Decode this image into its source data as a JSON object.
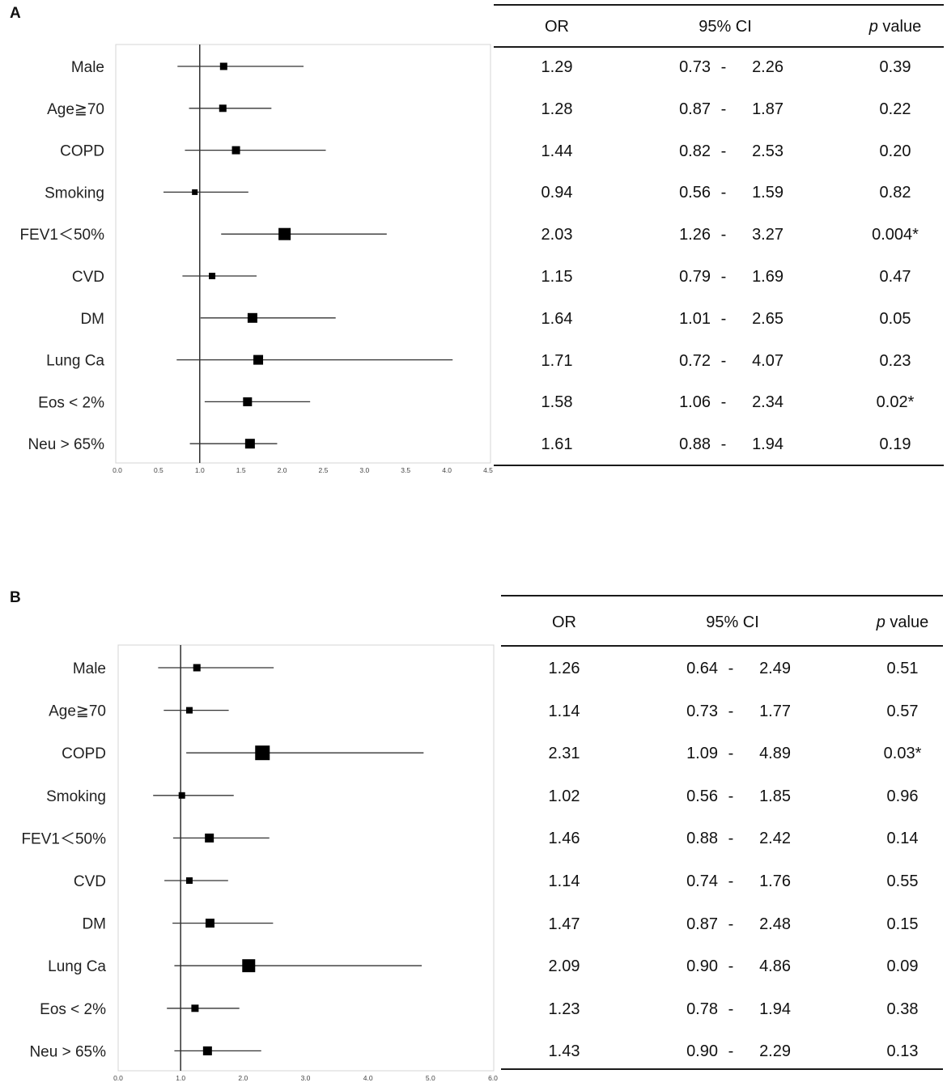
{
  "table_headers": {
    "or": "OR",
    "ci": "95% CI",
    "p_italic": "p",
    "p_rest": "value"
  },
  "chart_data": [
    {
      "type": "forest",
      "panel_label": "A",
      "xlim": [
        0,
        4.5
      ],
      "xticks": [
        "0.0",
        "0.5",
        "1.0",
        "1.5",
        "2.0",
        "2.5",
        "3.0",
        "3.5",
        "4.0",
        "4.5"
      ],
      "reference_line": 1.0,
      "rows": [
        {
          "label": "Male",
          "or": "1.29",
          "lo": "0.73",
          "hi": "2.26",
          "p": "0.39",
          "marker": 9
        },
        {
          "label": "Age≧70",
          "or": "1.28",
          "lo": "0.87",
          "hi": "1.87",
          "p": "0.22",
          "marker": 9
        },
        {
          "label": "COPD",
          "or": "1.44",
          "lo": "0.82",
          "hi": "2.53",
          "p": "0.20",
          "marker": 10
        },
        {
          "label": "Smoking",
          "or": "0.94",
          "lo": "0.56",
          "hi": "1.59",
          "p": "0.82",
          "marker": 7
        },
        {
          "label": "FEV1＜50%",
          "or": "2.03",
          "lo": "1.26",
          "hi": "3.27",
          "p": "0.004*",
          "marker": 15
        },
        {
          "label": "CVD",
          "or": "1.15",
          "lo": "0.79",
          "hi": "1.69",
          "p": "0.47",
          "marker": 8
        },
        {
          "label": "DM",
          "or": "1.64",
          "lo": "1.01",
          "hi": "2.65",
          "p": "0.05",
          "marker": 12
        },
        {
          "label": "Lung Ca",
          "or": "1.71",
          "lo": "0.72",
          "hi": "4.07",
          "p": "0.23",
          "marker": 12
        },
        {
          "label": "Eos < 2%",
          "or": "1.58",
          "lo": "1.06",
          "hi": "2.34",
          "p": "0.02*",
          "marker": 11
        },
        {
          "label": "Neu > 65%",
          "or": "1.61",
          "lo": "0.88",
          "hi": "1.94",
          "p": "0.19",
          "marker": 12
        }
      ]
    },
    {
      "type": "forest",
      "panel_label": "B",
      "xlim": [
        0,
        6
      ],
      "xticks": [
        "0.0",
        "1.0",
        "2.0",
        "3.0",
        "4.0",
        "5.0",
        "6.0"
      ],
      "reference_line": 1.0,
      "rows": [
        {
          "label": "Male",
          "or": "1.26",
          "lo": "0.64",
          "hi": "2.49",
          "p": "0.51",
          "marker": 9
        },
        {
          "label": "Age≧70",
          "or": "1.14",
          "lo": "0.73",
          "hi": "1.77",
          "p": "0.57",
          "marker": 8
        },
        {
          "label": "COPD",
          "or": "2.31",
          "lo": "1.09",
          "hi": "4.89",
          "p": "0.03*",
          "marker": 18
        },
        {
          "label": "Smoking",
          "or": "1.02",
          "lo": "0.56",
          "hi": "1.85",
          "p": "0.96",
          "marker": 8
        },
        {
          "label": "FEV1＜50%",
          "or": "1.46",
          "lo": "0.88",
          "hi": "2.42",
          "p": "0.14",
          "marker": 11
        },
        {
          "label": "CVD",
          "or": "1.14",
          "lo": "0.74",
          "hi": "1.76",
          "p": "0.55",
          "marker": 8
        },
        {
          "label": "DM",
          "or": "1.47",
          "lo": "0.87",
          "hi": "2.48",
          "p": "0.15",
          "marker": 11
        },
        {
          "label": "Lung Ca",
          "or": "2.09",
          "lo": "0.90",
          "hi": "4.86",
          "p": "0.09",
          "marker": 16
        },
        {
          "label": "Eos < 2%",
          "or": "1.23",
          "lo": "0.78",
          "hi": "1.94",
          "p": "0.38",
          "marker": 9
        },
        {
          "label": "Neu > 65%",
          "or": "1.43",
          "lo": "0.90",
          "hi": "2.29",
          "p": "0.13",
          "marker": 11
        }
      ]
    }
  ]
}
